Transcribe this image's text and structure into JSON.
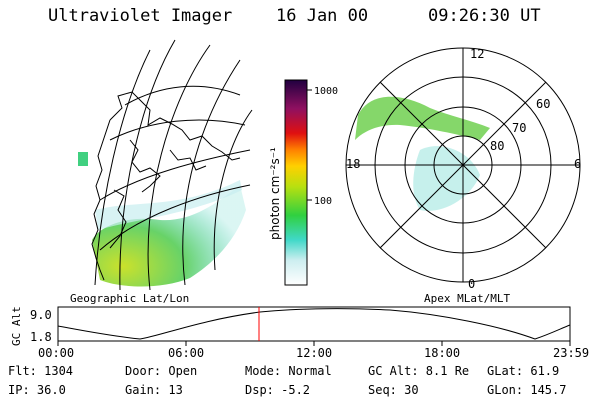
{
  "header": {
    "instrument": "Ultraviolet Imager",
    "date": "16 Jan 00",
    "time": "09:26:30 UT"
  },
  "geo_panel": {
    "label": "Geographic Lat/Lon"
  },
  "polar_panel": {
    "label": "Apex MLat/MLT",
    "mlt_labels": [
      "12",
      "18",
      "6",
      "0"
    ],
    "lat_labels": [
      "60",
      "70",
      "80"
    ]
  },
  "colorbar": {
    "unit_label": "photon cm⁻²s⁻¹",
    "ticks": [
      "1000",
      "100"
    ]
  },
  "orbit_plot": {
    "ylabel": "GC Alt",
    "y_ticks": [
      "9.0",
      "1.8"
    ],
    "x_ticks": [
      "00:00",
      "06:00",
      "12:00",
      "18:00",
      "23:59"
    ],
    "current_time_color": "#ff0000"
  },
  "status": {
    "flt": "Flt: 1304",
    "ip": "IP: 36.0",
    "door": "Door: Open",
    "gain": "Gain: 13",
    "mode": "Mode: Normal",
    "dsp": "Dsp:   -5.2",
    "gc_alt": "GC Alt: 8.1 Re",
    "seq": "Seq: 30",
    "glat": "GLat:  61.9",
    "glon": "GLon: 145.7"
  }
}
